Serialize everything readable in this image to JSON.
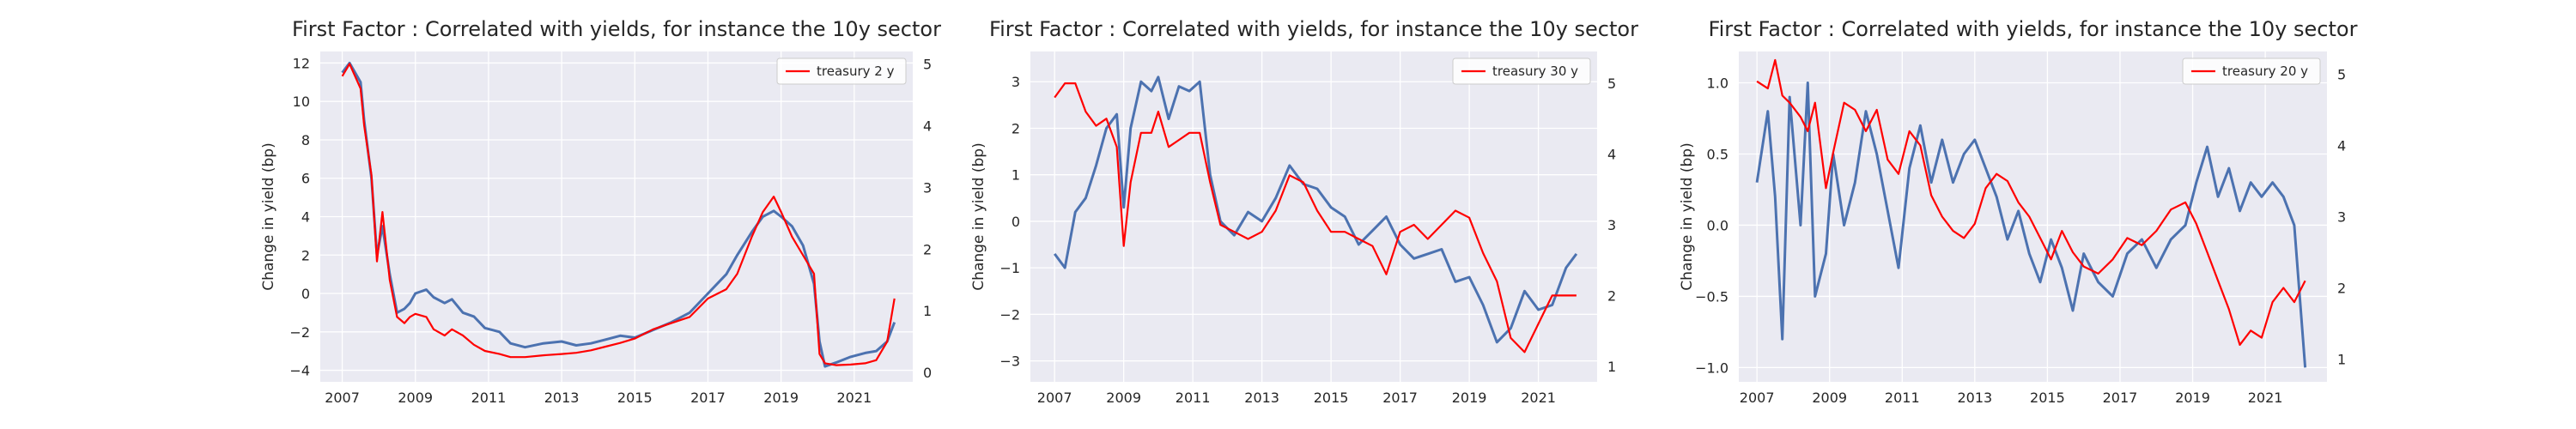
{
  "colors": {
    "factor": "#4c72b0",
    "treasury": "#ff0000",
    "background": "#eaeaf2"
  },
  "chart_data": [
    {
      "type": "line",
      "title": "First Factor : Correlated with yields, for instance the 10y sector",
      "ylabel": "Change in yield (bp)",
      "xlim": [
        2006.4,
        2022.6
      ],
      "xticks": [
        "2007",
        "2009",
        "2011",
        "2013",
        "2015",
        "2017",
        "2019",
        "2021"
      ],
      "ylim_left": [
        -4.6,
        12.6
      ],
      "yticks_left": [
        "−4",
        "−2",
        "0",
        "2",
        "4",
        "6",
        "8",
        "10",
        "12"
      ],
      "ylim_right": [
        -0.15,
        5.2
      ],
      "yticks_right": [
        "0",
        "1",
        "2",
        "3",
        "4",
        "5"
      ],
      "legend": {
        "label": "treasury 2 y",
        "position": "top-right"
      },
      "series": [
        {
          "name": "First Factor",
          "axis": "left",
          "x": [
            2007.0,
            2007.2,
            2007.5,
            2007.6,
            2007.8,
            2007.95,
            2008.1,
            2008.3,
            2008.5,
            2008.7,
            2008.85,
            2009.0,
            2009.3,
            2009.5,
            2009.8,
            2010.0,
            2010.3,
            2010.6,
            2010.9,
            2011.3,
            2011.6,
            2012.0,
            2012.5,
            2013.0,
            2013.4,
            2013.8,
            2014.2,
            2014.6,
            2015.0,
            2015.5,
            2016.0,
            2016.5,
            2017.0,
            2017.5,
            2017.8,
            2018.2,
            2018.5,
            2018.8,
            2019.0,
            2019.3,
            2019.6,
            2019.9,
            2020.05,
            2020.2,
            2020.5,
            2020.9,
            2021.3,
            2021.6,
            2021.9,
            2022.1
          ],
          "values": [
            11.5,
            12.0,
            11.0,
            9.0,
            6.0,
            2.0,
            3.5,
            1.0,
            -1.0,
            -0.8,
            -0.5,
            0.0,
            0.2,
            -0.2,
            -0.5,
            -0.3,
            -1.0,
            -1.2,
            -1.8,
            -2.0,
            -2.6,
            -2.8,
            -2.6,
            -2.5,
            -2.7,
            -2.6,
            -2.4,
            -2.2,
            -2.3,
            -1.9,
            -1.5,
            -1.0,
            0.0,
            1.0,
            2.0,
            3.2,
            4.0,
            4.3,
            4.0,
            3.5,
            2.5,
            0.5,
            -2.5,
            -3.8,
            -3.6,
            -3.3,
            -3.1,
            -3.0,
            -2.5,
            -1.5
          ]
        },
        {
          "name": "treasury 2 y",
          "axis": "right",
          "x": [
            2007.0,
            2007.2,
            2007.5,
            2007.6,
            2007.8,
            2007.95,
            2008.1,
            2008.3,
            2008.5,
            2008.7,
            2008.85,
            2009.0,
            2009.3,
            2009.5,
            2009.8,
            2010.0,
            2010.3,
            2010.6,
            2010.9,
            2011.3,
            2011.6,
            2012.0,
            2012.5,
            2013.0,
            2013.4,
            2013.8,
            2014.2,
            2014.6,
            2015.0,
            2015.5,
            2016.0,
            2016.5,
            2017.0,
            2017.5,
            2017.8,
            2018.2,
            2018.5,
            2018.8,
            2019.0,
            2019.3,
            2019.6,
            2019.9,
            2020.05,
            2020.2,
            2020.5,
            2020.9,
            2021.3,
            2021.6,
            2021.9,
            2022.1
          ],
          "values": [
            4.8,
            5.0,
            4.6,
            4.0,
            3.2,
            1.8,
            2.6,
            1.5,
            0.9,
            0.8,
            0.9,
            0.95,
            0.9,
            0.7,
            0.6,
            0.7,
            0.6,
            0.45,
            0.35,
            0.3,
            0.25,
            0.25,
            0.28,
            0.3,
            0.32,
            0.36,
            0.42,
            0.48,
            0.55,
            0.7,
            0.8,
            0.9,
            1.2,
            1.35,
            1.6,
            2.2,
            2.6,
            2.85,
            2.6,
            2.2,
            1.9,
            1.6,
            0.3,
            0.15,
            0.12,
            0.13,
            0.15,
            0.2,
            0.5,
            1.2
          ]
        }
      ]
    },
    {
      "type": "line",
      "title": "First Factor : Correlated with yields, for instance the 10y sector",
      "ylabel": "Change in yield (bp)",
      "xlim": [
        2006.3,
        2022.7
      ],
      "xticks": [
        "2007",
        "2009",
        "2011",
        "2013",
        "2015",
        "2017",
        "2019",
        "2021"
      ],
      "ylim_left": [
        -3.45,
        3.65
      ],
      "yticks_left": [
        "−3",
        "−2",
        "−1",
        "0",
        "1",
        "2",
        "3"
      ],
      "ylim_right": [
        0.78,
        5.45
      ],
      "yticks_right": [
        "1",
        "2",
        "3",
        "4",
        "5"
      ],
      "legend": {
        "label": "treasury 30 y",
        "position": "top-right"
      },
      "series": [
        {
          "name": "First Factor",
          "axis": "left",
          "x": [
            2007.0,
            2007.3,
            2007.6,
            2007.9,
            2008.2,
            2008.5,
            2008.8,
            2009.0,
            2009.2,
            2009.5,
            2009.8,
            2010.0,
            2010.3,
            2010.6,
            2010.9,
            2011.2,
            2011.5,
            2011.8,
            2012.2,
            2012.6,
            2013.0,
            2013.4,
            2013.8,
            2014.2,
            2014.6,
            2015.0,
            2015.4,
            2015.8,
            2016.2,
            2016.6,
            2017.0,
            2017.4,
            2017.8,
            2018.2,
            2018.6,
            2019.0,
            2019.4,
            2019.8,
            2020.2,
            2020.6,
            2021.0,
            2021.4,
            2021.8,
            2022.1
          ],
          "values": [
            -0.7,
            -1.0,
            0.2,
            0.5,
            1.2,
            2.0,
            2.3,
            0.3,
            2.0,
            3.0,
            2.8,
            3.1,
            2.2,
            2.9,
            2.8,
            3.0,
            1.0,
            0.0,
            -0.3,
            0.2,
            0.0,
            0.5,
            1.2,
            0.8,
            0.7,
            0.3,
            0.1,
            -0.5,
            -0.2,
            0.1,
            -0.5,
            -0.8,
            -0.7,
            -0.6,
            -1.3,
            -1.2,
            -1.8,
            -2.6,
            -2.3,
            -1.5,
            -1.9,
            -1.8,
            -1.0,
            -0.7
          ]
        },
        {
          "name": "treasury 30 y",
          "axis": "right",
          "x": [
            2007.0,
            2007.3,
            2007.6,
            2007.9,
            2008.2,
            2008.5,
            2008.8,
            2009.0,
            2009.2,
            2009.5,
            2009.8,
            2010.0,
            2010.3,
            2010.6,
            2010.9,
            2011.2,
            2011.5,
            2011.8,
            2012.2,
            2012.6,
            2013.0,
            2013.4,
            2013.8,
            2014.2,
            2014.6,
            2015.0,
            2015.4,
            2015.8,
            2016.2,
            2016.6,
            2017.0,
            2017.4,
            2017.8,
            2018.2,
            2018.6,
            2019.0,
            2019.4,
            2019.8,
            2020.2,
            2020.6,
            2021.0,
            2021.4,
            2021.8,
            2022.1
          ],
          "values": [
            4.8,
            5.0,
            5.0,
            4.6,
            4.4,
            4.5,
            4.1,
            2.7,
            3.6,
            4.3,
            4.3,
            4.6,
            4.1,
            4.2,
            4.3,
            4.3,
            3.6,
            3.0,
            2.9,
            2.8,
            2.9,
            3.2,
            3.7,
            3.6,
            3.2,
            2.9,
            2.9,
            2.8,
            2.7,
            2.3,
            2.9,
            3.0,
            2.8,
            3.0,
            3.2,
            3.1,
            2.6,
            2.2,
            1.4,
            1.2,
            1.6,
            2.0,
            2.0,
            2.0
          ]
        }
      ]
    },
    {
      "type": "line",
      "title": "First Factor : Correlated with yields, for instance the 10y sector",
      "ylabel": "Change in yield (bp)",
      "xlim": [
        2006.5,
        2022.7
      ],
      "xticks": [
        "2007",
        "2009",
        "2011",
        "2013",
        "2015",
        "2017",
        "2019",
        "2021"
      ],
      "ylim_left": [
        -1.1,
        1.22
      ],
      "yticks_left": [
        "−1.0",
        "−0.5",
        "0.0",
        "0.5",
        "1.0"
      ],
      "ylim_right": [
        0.68,
        5.32
      ],
      "yticks_right": [
        "1",
        "2",
        "3",
        "4",
        "5"
      ],
      "legend": {
        "label": "treasury 20 y",
        "position": "top-right"
      },
      "series": [
        {
          "name": "First Factor",
          "axis": "left",
          "x": [
            2007.0,
            2007.3,
            2007.5,
            2007.7,
            2007.9,
            2008.2,
            2008.4,
            2008.6,
            2008.9,
            2009.1,
            2009.4,
            2009.7,
            2010.0,
            2010.3,
            2010.6,
            2010.9,
            2011.2,
            2011.5,
            2011.8,
            2012.1,
            2012.4,
            2012.7,
            2013.0,
            2013.3,
            2013.6,
            2013.9,
            2014.2,
            2014.5,
            2014.8,
            2015.1,
            2015.4,
            2015.7,
            2016.0,
            2016.4,
            2016.8,
            2017.2,
            2017.6,
            2018.0,
            2018.4,
            2018.8,
            2019.1,
            2019.4,
            2019.7,
            2020.0,
            2020.3,
            2020.6,
            2020.9,
            2021.2,
            2021.5,
            2021.8,
            2022.1
          ],
          "values": [
            0.3,
            0.8,
            0.2,
            -0.8,
            0.9,
            0.0,
            1.0,
            -0.5,
            -0.2,
            0.5,
            0.0,
            0.3,
            0.8,
            0.5,
            0.1,
            -0.3,
            0.4,
            0.7,
            0.3,
            0.6,
            0.3,
            0.5,
            0.6,
            0.4,
            0.2,
            -0.1,
            0.1,
            -0.2,
            -0.4,
            -0.1,
            -0.3,
            -0.6,
            -0.2,
            -0.4,
            -0.5,
            -0.2,
            -0.1,
            -0.3,
            -0.1,
            0.0,
            0.3,
            0.55,
            0.2,
            0.4,
            0.1,
            0.3,
            0.2,
            0.3,
            0.2,
            0.0,
            -1.0
          ]
        },
        {
          "name": "treasury 20 y",
          "axis": "right",
          "x": [
            2007.0,
            2007.3,
            2007.5,
            2007.7,
            2007.9,
            2008.2,
            2008.4,
            2008.6,
            2008.9,
            2009.1,
            2009.4,
            2009.7,
            2010.0,
            2010.3,
            2010.6,
            2010.9,
            2011.2,
            2011.5,
            2011.8,
            2012.1,
            2012.4,
            2012.7,
            2013.0,
            2013.3,
            2013.6,
            2013.9,
            2014.2,
            2014.5,
            2014.8,
            2015.1,
            2015.4,
            2015.7,
            2016.0,
            2016.4,
            2016.8,
            2017.2,
            2017.6,
            2018.0,
            2018.4,
            2018.8,
            2019.1,
            2019.4,
            2019.7,
            2020.0,
            2020.3,
            2020.6,
            2020.9,
            2021.2,
            2021.5,
            2021.8,
            2022.1
          ],
          "values": [
            4.9,
            4.8,
            5.2,
            4.7,
            4.6,
            4.4,
            4.2,
            4.6,
            3.4,
            3.9,
            4.6,
            4.5,
            4.2,
            4.5,
            3.8,
            3.6,
            4.2,
            4.0,
            3.3,
            3.0,
            2.8,
            2.7,
            2.9,
            3.4,
            3.6,
            3.5,
            3.2,
            3.0,
            2.7,
            2.4,
            2.8,
            2.5,
            2.3,
            2.2,
            2.4,
            2.7,
            2.6,
            2.8,
            3.1,
            3.2,
            2.9,
            2.5,
            2.1,
            1.7,
            1.2,
            1.4,
            1.3,
            1.8,
            2.0,
            1.8,
            2.1
          ]
        }
      ]
    }
  ]
}
